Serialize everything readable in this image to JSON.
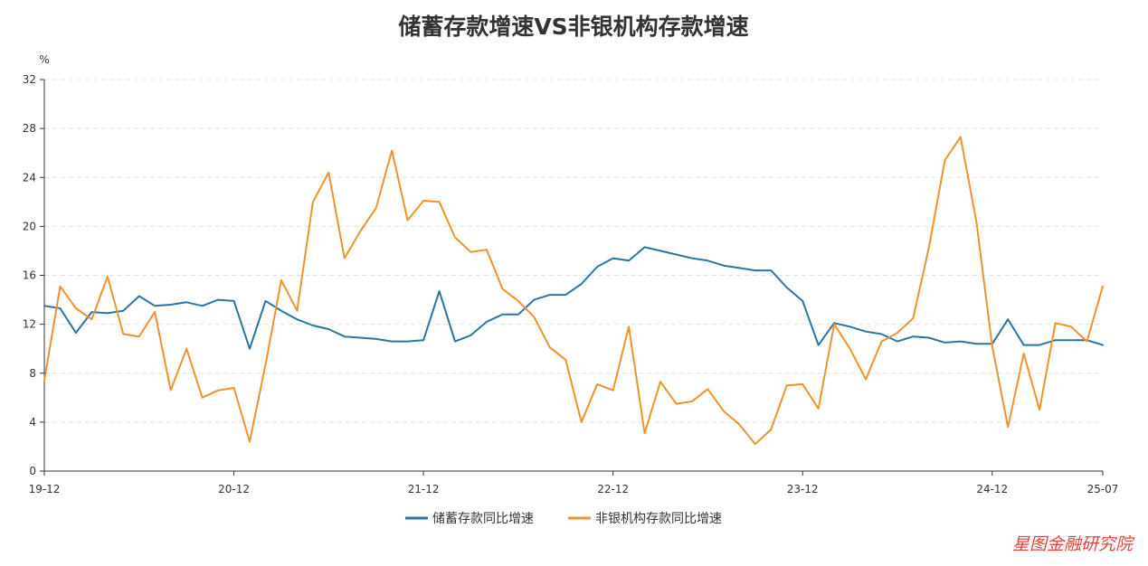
{
  "chart_data": {
    "type": "line",
    "title": "储蓄存款增速VS非银机构存款增速",
    "ylabel": "%",
    "ylim": [
      0,
      32
    ],
    "yticks": [
      0,
      4,
      8,
      12,
      16,
      20,
      24,
      28,
      32
    ],
    "x_tick_labels": [
      {
        "index": 0,
        "label": "19-12"
      },
      {
        "index": 12,
        "label": "20-12"
      },
      {
        "index": 24,
        "label": "21-12"
      },
      {
        "index": 36,
        "label": "22-12"
      },
      {
        "index": 48,
        "label": "23-12"
      },
      {
        "index": 60,
        "label": "24-12"
      },
      {
        "index": 67,
        "label": "25-07"
      }
    ],
    "grid": true,
    "legend_position": "bottom-center",
    "series": [
      {
        "name": "储蓄存款同比增速",
        "color": "#2b75a3",
        "values": [
          13.5,
          13.3,
          11.3,
          13.0,
          12.9,
          13.1,
          14.3,
          13.5,
          13.6,
          13.8,
          13.5,
          14.0,
          13.9,
          10.0,
          13.9,
          13.1,
          12.4,
          11.9,
          11.6,
          11.0,
          10.9,
          10.8,
          10.6,
          10.6,
          10.7,
          14.7,
          10.6,
          11.1,
          12.2,
          12.8,
          12.8,
          14.0,
          14.4,
          14.4,
          15.3,
          16.7,
          17.4,
          17.2,
          18.3,
          18.0,
          17.7,
          17.4,
          17.2,
          16.8,
          16.6,
          16.4,
          16.4,
          15.0,
          13.9,
          10.3,
          12.1,
          11.8,
          11.4,
          11.2,
          10.6,
          11.0,
          10.9,
          10.5,
          10.6,
          10.4,
          10.4,
          12.4,
          10.3,
          10.3,
          10.7,
          10.7,
          10.7,
          10.3
        ]
      },
      {
        "name": "非银机构存款同比增速",
        "color": "#f0922b",
        "values": [
          7.4,
          15.1,
          13.3,
          12.4,
          15.9,
          11.2,
          11.0,
          13.0,
          6.6,
          10.0,
          6.0,
          6.6,
          6.8,
          2.4,
          8.7,
          15.6,
          13.1,
          22.0,
          24.4,
          17.4,
          19.6,
          21.5,
          26.2,
          20.5,
          22.1,
          22.0,
          19.1,
          17.9,
          18.1,
          14.9,
          13.9,
          12.6,
          10.1,
          9.1,
          4.0,
          7.1,
          6.6,
          11.8,
          3.1,
          7.3,
          5.5,
          5.7,
          6.7,
          4.9,
          3.8,
          2.2,
          3.4,
          7.0,
          7.1,
          5.1,
          12.0,
          10.0,
          7.5,
          10.6,
          11.3,
          12.5,
          18.3,
          25.4,
          27.3,
          20.4,
          10.2,
          3.6,
          9.6,
          5.0,
          12.1,
          11.8,
          10.6,
          15.1
        ]
      }
    ]
  },
  "watermark": "星图金融研究院"
}
